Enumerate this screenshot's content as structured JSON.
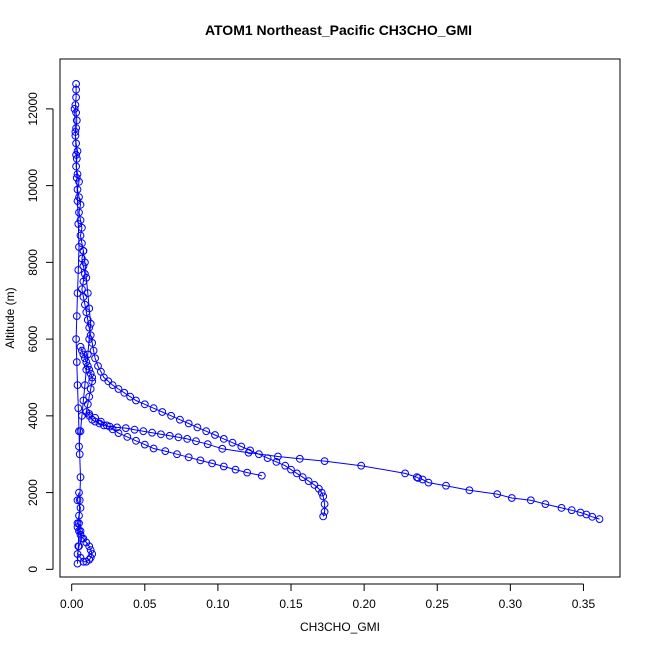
{
  "chart_data": {
    "type": "scatter",
    "title": "ATOM1 Northeast_Pacific CH3CHO_GMI",
    "xlabel": "CH3CHO_GMI",
    "ylabel": "Altitude (m)",
    "xlim": [
      -0.008,
      0.375
    ],
    "ylim": [
      -200,
      13300
    ],
    "x_ticks": [
      0.0,
      0.05,
      0.1,
      0.15,
      0.2,
      0.25,
      0.3,
      0.35
    ],
    "x_tick_labels": [
      "0.00",
      "0.05",
      "0.10",
      "0.15",
      "0.20",
      "0.25",
      "0.30",
      "0.35"
    ],
    "y_ticks": [
      0,
      2000,
      4000,
      6000,
      8000,
      10000,
      12000
    ],
    "y_tick_labels": [
      "0",
      "2000",
      "4000",
      "6000",
      "8000",
      "10000",
      "12000"
    ],
    "marker": "open-circle",
    "color": "#0000ff",
    "grid": false,
    "legend": "none",
    "series": [
      {
        "x": [
          0.003,
          0.003,
          0.003,
          0.0025,
          0.003,
          0.0035,
          0.003,
          0.0025,
          0.003,
          0.004,
          0.0035,
          0.003,
          0.004,
          0.005,
          0.004,
          0.005,
          0.006,
          0.005,
          0.006,
          0.007,
          0.006,
          0.007,
          0.008,
          0.007,
          0.008,
          0.009,
          0.008,
          0.007,
          0.008,
          0.009,
          0.01,
          0.011,
          0.012,
          0.013,
          0.014,
          0.015,
          0.016,
          0.018,
          0.02,
          0.022,
          0.025,
          0.028,
          0.032,
          0.036,
          0.04,
          0.044,
          0.05,
          0.056,
          0.062,
          0.068,
          0.074,
          0.08,
          0.086,
          0.092,
          0.098,
          0.104,
          0.11,
          0.116,
          0.122,
          0.128,
          0.134,
          0.14,
          0.146,
          0.15,
          0.154,
          0.158,
          0.162,
          0.166,
          0.169,
          0.171,
          0.172,
          0.173,
          0.173,
          0.172
        ],
        "y": [
          12650,
          12500,
          12300,
          12100,
          11900,
          11700,
          11500,
          11300,
          11100,
          10900,
          10700,
          10500,
          10300,
          10100,
          9900,
          9700,
          9500,
          9300,
          9100,
          8900,
          8700,
          8500,
          8300,
          8100,
          7900,
          7700,
          7500,
          7300,
          7100,
          6900,
          6700,
          6500,
          6300,
          6100,
          5900,
          5700,
          5500,
          5300,
          5150,
          5000,
          4900,
          4800,
          4700,
          4600,
          4500,
          4400,
          4300,
          4200,
          4100,
          4000,
          3900,
          3800,
          3700,
          3600,
          3500,
          3400,
          3300,
          3200,
          3100,
          3000,
          2900,
          2800,
          2700,
          2600,
          2500,
          2400,
          2300,
          2200,
          2100,
          2000,
          1900,
          1700,
          1500,
          1380
        ]
      },
      {
        "x": [
          0.006,
          0.007,
          0.008,
          0.009,
          0.01,
          0.011,
          0.012,
          0.013,
          0.014,
          0.014,
          0.013,
          0.012,
          0.011,
          0.01,
          0.012,
          0.014,
          0.016,
          0.019,
          0.022,
          0.026,
          0.031,
          0.037,
          0.043,
          0.049,
          0.055,
          0.061,
          0.067,
          0.073,
          0.079,
          0.085,
          0.093,
          0.103,
          0.121,
          0.141,
          0.156,
          0.173,
          0.198,
          0.228,
          0.236,
          0.237,
          0.24,
          0.244,
          0.256,
          0.272,
          0.291,
          0.301,
          0.314,
          0.324,
          0.335,
          0.342,
          0.348,
          0.352,
          0.356,
          0.361
        ],
        "y": [
          5800,
          5700,
          5600,
          5500,
          5400,
          5300,
          5200,
          5100,
          5000,
          4900,
          4700,
          4500,
          4300,
          4100,
          4000,
          3900,
          3850,
          3800,
          3750,
          3720,
          3700,
          3680,
          3640,
          3600,
          3560,
          3520,
          3480,
          3440,
          3400,
          3340,
          3260,
          3140,
          3040,
          2940,
          2880,
          2820,
          2700,
          2500,
          2400,
          2380,
          2340,
          2260,
          2180,
          2060,
          1960,
          1860,
          1800,
          1700,
          1600,
          1540,
          1480,
          1430,
          1370,
          1310
        ]
      },
      {
        "x": [
          0.012,
          0.016,
          0.02,
          0.024,
          0.028,
          0.032,
          0.038,
          0.044,
          0.05,
          0.056,
          0.064,
          0.072,
          0.08,
          0.088,
          0.096,
          0.104,
          0.112,
          0.12,
          0.13
        ],
        "y": [
          4050,
          3950,
          3850,
          3750,
          3650,
          3550,
          3450,
          3350,
          3250,
          3150,
          3080,
          3000,
          2920,
          2840,
          2760,
          2680,
          2600,
          2520,
          2440
        ]
      },
      {
        "x": [
          0.005,
          0.004,
          0.006,
          0.005,
          0.004,
          0.006,
          0.007,
          0.005,
          0.004,
          0.006,
          0.008,
          0.01,
          0.012,
          0.013,
          0.014,
          0.013,
          0.012,
          0.01,
          0.008,
          0.006,
          0.005,
          0.004
        ],
        "y": [
          2000,
          1800,
          1600,
          1400,
          1200,
          1000,
          800,
          600,
          400,
          300,
          200,
          200,
          250,
          300,
          400,
          500,
          600,
          700,
          800,
          900,
          1000,
          1100
        ]
      },
      {
        "x": [
          0.008,
          0.009,
          0.01,
          0.011,
          0.012,
          0.013,
          0.012,
          0.011,
          0.01,
          0.009,
          0.008,
          0.007,
          0.006,
          0.005
        ],
        "y": [
          8300,
          8000,
          7600,
          7200,
          6800,
          6400,
          6000,
          5600,
          5200,
          4800,
          4400,
          4000,
          3600,
          3200
        ]
      },
      {
        "x": [
          0.002,
          0.0025,
          0.003,
          0.0035,
          0.004,
          0.0045,
          0.005,
          0.0045,
          0.004,
          0.0035,
          0.003,
          0.0035,
          0.004,
          0.0045,
          0.005,
          0.0055,
          0.006,
          0.0055,
          0.005,
          0.0045,
          0.004
        ],
        "y": [
          12000,
          11400,
          10800,
          10200,
          9600,
          9000,
          8400,
          7800,
          7200,
          6600,
          6000,
          5400,
          4800,
          4200,
          3600,
          3000,
          2400,
          1800,
          1200,
          600,
          150
        ]
      }
    ]
  }
}
